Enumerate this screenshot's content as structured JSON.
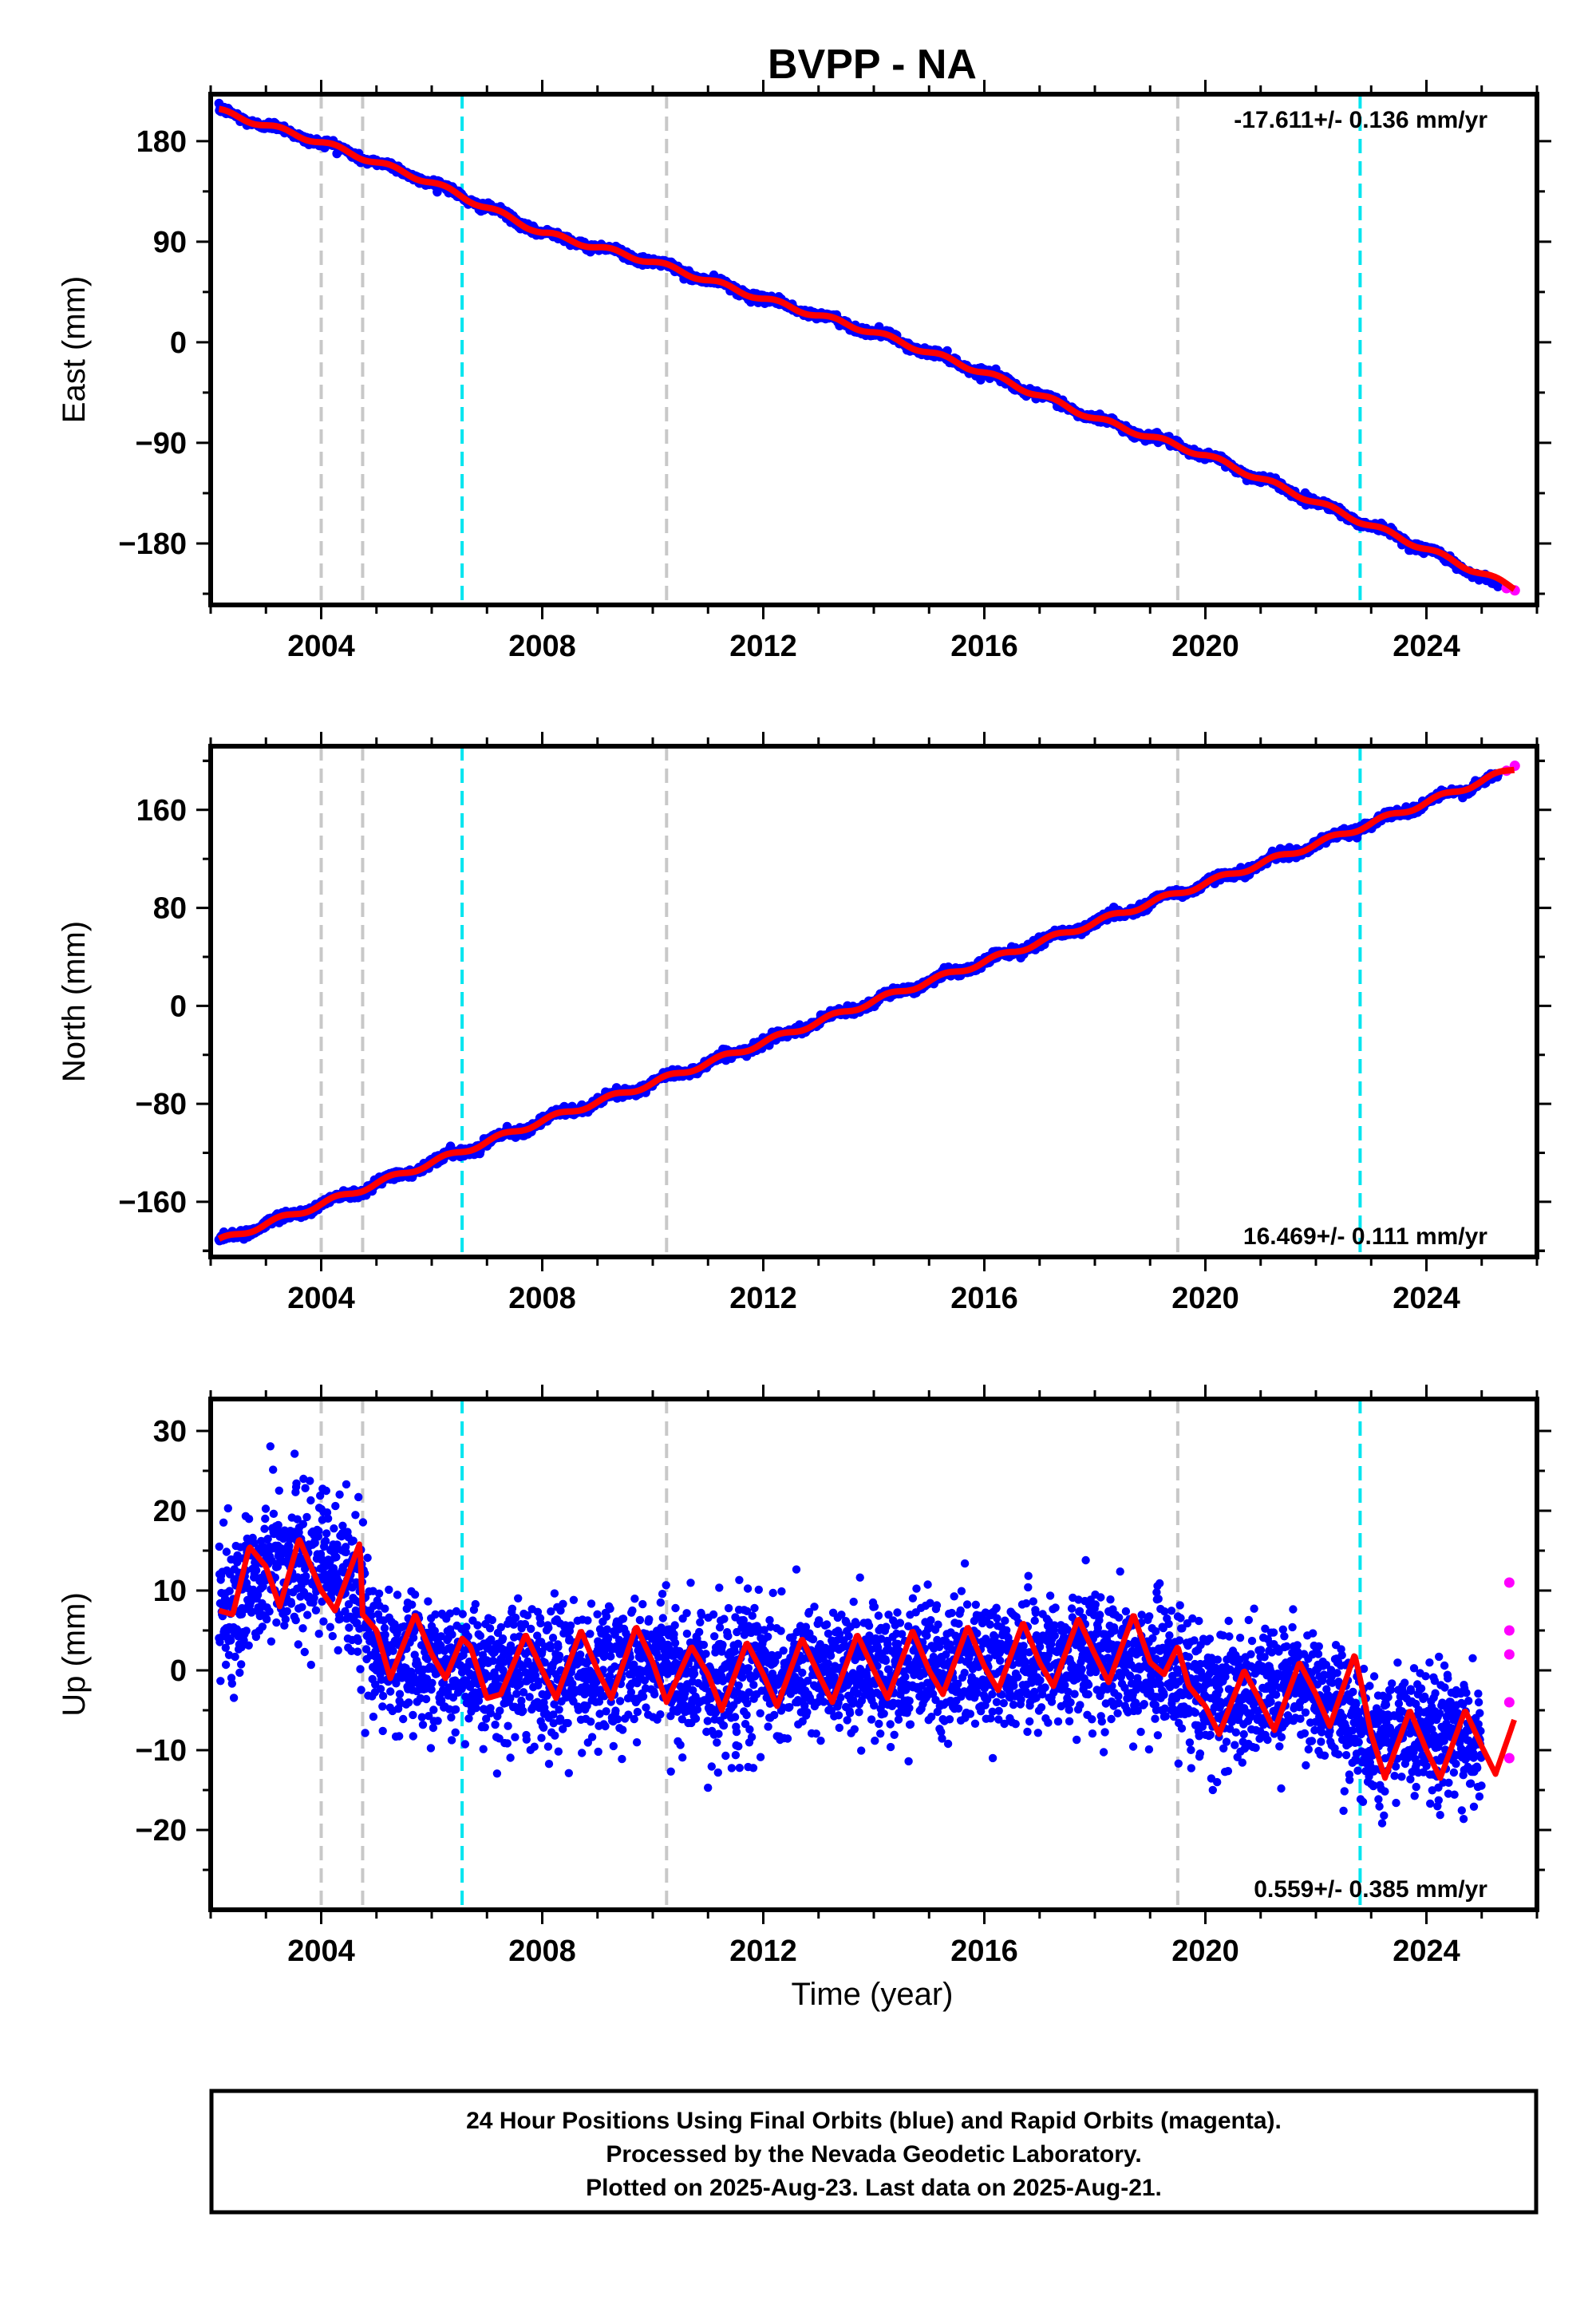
{
  "chart_data": [
    {
      "type": "scatter",
      "title": "BVPP - NA",
      "ylabel": "East (mm)",
      "xlabel": "",
      "xlim": [
        2002.0,
        2026.0
      ],
      "ylim": [
        -235,
        222
      ],
      "xticks": [
        2004,
        2008,
        2012,
        2016,
        2020,
        2024
      ],
      "yticks": [
        -180,
        -90,
        0,
        90,
        180
      ],
      "ytick_labels": [
        "−180",
        "−90",
        "0",
        "90",
        "180"
      ],
      "rate_text": "-17.611+/- 0.136 mm/yr",
      "rate_position": "top-right",
      "series": [
        {
          "color": "#0000ff",
          "x": [
            2002.15,
            2004.0,
            2006.0,
            2008.0,
            2010.0,
            2012.0,
            2014.0,
            2016.0,
            2018.0,
            2020.0,
            2022.0,
            2024.0,
            2025.3
          ],
          "y": [
            207,
            179,
            143,
            98,
            72,
            39,
            9,
            -27,
            -68,
            -101,
            -143,
            -185,
            -218
          ]
        },
        {
          "color": "#ff00ff",
          "x": [
            2025.45,
            2025.6
          ],
          "y": [
            -220,
            -222
          ]
        },
        {
          "color": "#ff0000",
          "x": [
            2002.15,
            2004.0,
            2006.0,
            2008.0,
            2010.0,
            2012.0,
            2014.0,
            2016.0,
            2018.0,
            2020.0,
            2022.0,
            2024.0,
            2025.6
          ],
          "y": [
            207,
            179,
            143,
            98,
            72,
            39,
            9,
            -27,
            -68,
            -101,
            -143,
            -185,
            -220
          ]
        }
      ],
      "vlines_gray": [
        2004.0,
        2004.75,
        2010.25,
        2019.5
      ],
      "vlines_cyan": [
        2006.55,
        2022.8
      ]
    },
    {
      "type": "scatter",
      "title": "",
      "ylabel": "North (mm)",
      "xlabel": "",
      "xlim": [
        2002.0,
        2026.0
      ],
      "ylim": [
        -205,
        212
      ],
      "xticks": [
        2004,
        2008,
        2012,
        2016,
        2020,
        2024
      ],
      "yticks": [
        -160,
        -80,
        0,
        80,
        160
      ],
      "ytick_labels": [
        "−160",
        "−80",
        "0",
        "80",
        "160"
      ],
      "rate_text": "16.469+/- 0.111 mm/yr",
      "rate_position": "bottom-right",
      "series": [
        {
          "color": "#0000ff",
          "x": [
            2002.15,
            2004.0,
            2006.0,
            2008.0,
            2010.0,
            2012.0,
            2014.0,
            2016.0,
            2018.0,
            2020.0,
            2022.0,
            2024.0,
            2025.3
          ],
          "y": [
            -192,
            -162,
            -128,
            -94,
            -63,
            -30,
            4,
            36,
            68,
            100,
            132,
            166,
            187
          ]
        },
        {
          "color": "#ff00ff",
          "x": [
            2025.45,
            2025.6
          ],
          "y": [
            192,
            196
          ]
        },
        {
          "color": "#ff0000",
          "x": [
            2002.15,
            2004.0,
            2006.0,
            2008.0,
            2010.0,
            2012.0,
            2014.0,
            2016.0,
            2018.0,
            2020.0,
            2022.0,
            2024.0,
            2025.6
          ],
          "y": [
            -192,
            -162,
            -128,
            -94,
            -63,
            -30,
            4,
            36,
            68,
            100,
            132,
            166,
            194
          ]
        }
      ],
      "vlines_gray": [
        2004.0,
        2004.75,
        2010.25,
        2019.5
      ],
      "vlines_cyan": [
        2006.55,
        2022.8
      ]
    },
    {
      "type": "scatter",
      "title": "",
      "ylabel": "Up (mm)",
      "xlabel": "Time (year)",
      "xlim": [
        2002.0,
        2026.0
      ],
      "ylim": [
        -30,
        34
      ],
      "xticks": [
        2004,
        2008,
        2012,
        2016,
        2020,
        2024
      ],
      "yticks": [
        -20,
        -10,
        0,
        10,
        20,
        30
      ],
      "ytick_labels": [
        "−20",
        "−10",
        "0",
        "10",
        "20",
        "30"
      ],
      "rate_text": "0.559+/- 0.385 mm/yr",
      "rate_position": "bottom-right",
      "series": [
        {
          "color": "#0000ff",
          "x": [
            2002.15,
            2003.0,
            2003.7,
            2004.5,
            2005.0,
            2006.0,
            2007.0,
            2008.0,
            2009.0,
            2010.0,
            2011.0,
            2012.0,
            2013.0,
            2014.0,
            2015.0,
            2016.0,
            2017.0,
            2018.0,
            2019.0,
            2020.0,
            2021.0,
            2022.0,
            2023.0,
            2024.0,
            2025.0
          ],
          "y": [
            7,
            13,
            14,
            12,
            2,
            1,
            -1,
            0,
            0,
            1,
            -1,
            0,
            -1,
            0,
            0,
            1,
            1,
            2,
            1,
            -3,
            -3,
            -2,
            -8,
            -7,
            -10
          ]
        },
        {
          "color": "#ff00ff",
          "x": [
            2025.5,
            2025.5,
            2025.5,
            2025.5,
            2025.5
          ],
          "y": [
            11,
            5,
            2,
            -4,
            -11
          ]
        },
        {
          "color": "#ff0000",
          "x": [
            2002.15,
            2002.4,
            2002.7,
            2003.0,
            2003.25,
            2003.6,
            2004.0,
            2004.25,
            2004.7,
            2004.75,
            2005.0,
            2005.25,
            2005.7,
            2006.0,
            2006.25,
            2006.55,
            2006.7,
            2007.0,
            2007.25,
            2007.7,
            2008.0,
            2008.25,
            2008.7,
            2009.0,
            2009.25,
            2009.7,
            2010.0,
            2010.25,
            2010.7,
            2011.0,
            2011.25,
            2011.7,
            2012.0,
            2012.25,
            2012.7,
            2013.0,
            2013.25,
            2013.7,
            2014.0,
            2014.25,
            2014.7,
            2015.0,
            2015.25,
            2015.7,
            2016.0,
            2016.25,
            2016.7,
            2017.0,
            2017.25,
            2017.7,
            2018.0,
            2018.25,
            2018.7,
            2019.0,
            2019.25,
            2019.5,
            2019.7,
            2020.0,
            2020.25,
            2020.7,
            2021.0,
            2021.25,
            2021.7,
            2022.0,
            2022.25,
            2022.7,
            2022.8,
            2023.0,
            2023.25,
            2023.7,
            2024.0,
            2024.25,
            2024.7,
            2025.0,
            2025.25,
            2025.6
          ],
          "y": [
            7.5,
            7,
            15.5,
            13,
            8,
            16.5,
            10,
            7.5,
            16,
            7,
            5,
            -1,
            7,
            2,
            -1,
            4,
            3,
            -3.5,
            -3,
            4.5,
            0,
            -3.5,
            5,
            0,
            -3.5,
            5.5,
            1,
            -4,
            3,
            -0.5,
            -5,
            3.5,
            -0.5,
            -4.5,
            4,
            -0.5,
            -4,
            4.5,
            0,
            -3.5,
            5,
            0,
            -3,
            5.5,
            0.5,
            -2.5,
            6,
            1,
            -2,
            6.5,
            2,
            -1.5,
            7,
            1,
            -0.5,
            3,
            -2,
            -4.5,
            -8,
            0,
            -4,
            -7.5,
            1,
            -3,
            -7,
            2,
            -1,
            -8,
            -13.5,
            -5,
            -10,
            -13.5,
            -5,
            -9.5,
            -13,
            -6
          ]
        }
      ],
      "vlines_gray": [
        2004.0,
        2004.75,
        2010.25,
        2019.5
      ],
      "vlines_cyan": [
        2006.55,
        2022.8
      ]
    }
  ],
  "footer": {
    "line1": "24 Hour Positions Using Final Orbits (blue) and Rapid Orbits (magenta).",
    "line2": "Processed by the Nevada Geodetic Laboratory.",
    "line3": "Plotted on 2025-Aug-23. Last data on 2025-Aug-21."
  }
}
